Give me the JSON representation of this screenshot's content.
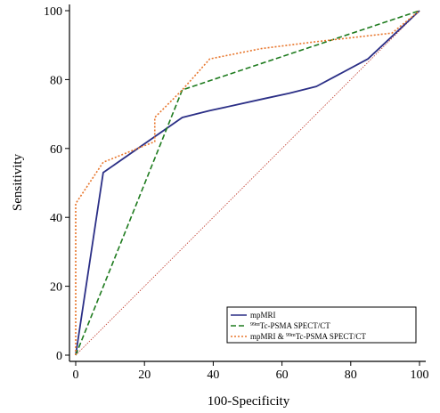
{
  "chart_data": {
    "type": "line",
    "xlabel": "100-Specificity",
    "ylabel": "Sensitivity",
    "xlim": [
      0,
      100
    ],
    "ylim": [
      0,
      100
    ],
    "xticks": [
      0,
      20,
      40,
      60,
      80,
      100
    ],
    "yticks": [
      0,
      20,
      40,
      60,
      80,
      100
    ],
    "legend_position": "bottom-right",
    "grid": false,
    "reference_line": {
      "x": [
        0,
        100
      ],
      "y": [
        0,
        100
      ],
      "color": "#c0392b"
    },
    "series": [
      {
        "name": "mpMRI",
        "name_prefix": "",
        "name_superscript": "",
        "name_suffix": "mpMRI",
        "color": "#2b2f86",
        "style": "solid",
        "x": [
          0,
          8,
          31,
          39,
          46,
          55,
          62,
          70,
          85,
          100
        ],
        "y": [
          0,
          53,
          69,
          71,
          72.5,
          74.5,
          76,
          78,
          86,
          100
        ]
      },
      {
        "name": "99mTc-PSMA SPECT/CT",
        "name_prefix": "",
        "name_superscript": "99m",
        "name_suffix": "Tc-PSMA SPECT/CT",
        "color": "#1e7b1e",
        "style": "dashed",
        "x": [
          0,
          31,
          100
        ],
        "y": [
          0,
          77,
          100
        ]
      },
      {
        "name": "mpMRI & 99mTc-PSMA SPECT/CT",
        "name_prefix": "mpMRI & ",
        "name_superscript": "99m",
        "name_suffix": "Tc-PSMA SPECT/CT",
        "color": "#e8762c",
        "style": "dotted",
        "x": [
          0,
          0,
          8,
          23,
          23,
          31,
          39,
          54,
          70,
          92,
          100
        ],
        "y": [
          0,
          44,
          56,
          62,
          69,
          77,
          86,
          89,
          91,
          93.5,
          100
        ]
      }
    ]
  }
}
